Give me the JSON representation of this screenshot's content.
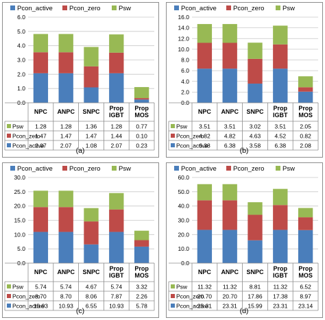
{
  "colors": {
    "pcon_active": "#4a7ebb",
    "pcon_zero": "#be4b48",
    "psw": "#98b954",
    "grid": "#c8c8c8",
    "border": "#8c8c8c",
    "text": "#000000"
  },
  "chart_data": [
    {
      "panel_label": "(a)",
      "type": "bar",
      "stacked": true,
      "categories": [
        "NPC",
        "ANPC",
        "SNPC",
        "Prop IGBT",
        "Prop MOS"
      ],
      "series": [
        {
          "name": "Pcon_active",
          "color_key": "pcon_active",
          "values": [
            2.07,
            2.07,
            1.08,
            2.07,
            0.23
          ],
          "labels": [
            "2.07",
            "2.07",
            "1.08",
            "2.07",
            "0.23"
          ]
        },
        {
          "name": "Pcon_zero",
          "color_key": "pcon_zero",
          "values": [
            1.47,
            1.47,
            1.47,
            1.44,
            0.1
          ],
          "labels": [
            "1.47",
            "1.47",
            "1.47",
            "1.44",
            "0.10"
          ]
        },
        {
          "name": "Psw",
          "color_key": "psw",
          "values": [
            1.28,
            1.28,
            1.36,
            1.28,
            0.77
          ],
          "labels": [
            "1.28",
            "1.28",
            "1.36",
            "1.28",
            "0.77"
          ]
        }
      ],
      "ylim": [
        0,
        6.0
      ],
      "yticks": [
        "0.0",
        "1.0",
        "2.0",
        "3.0",
        "4.0",
        "5.0",
        "6.0"
      ],
      "grid": true,
      "legend_position": "top",
      "xlabel": "",
      "ylabel": "",
      "title": ""
    },
    {
      "panel_label": "(b)",
      "type": "bar",
      "stacked": true,
      "categories": [
        "NPC",
        "ANPC",
        "SNPC",
        "Prop IGBT",
        "Prop MOS"
      ],
      "series": [
        {
          "name": "Pcon_active",
          "color_key": "pcon_active",
          "values": [
            6.38,
            6.38,
            3.58,
            6.38,
            2.08
          ],
          "labels": [
            "6.38",
            "6.38",
            "3.58",
            "6.38",
            "2.08"
          ]
        },
        {
          "name": "Pcon_zero",
          "color_key": "pcon_zero",
          "values": [
            4.82,
            4.82,
            4.63,
            4.52,
            0.82
          ],
          "labels": [
            "4.82",
            "4.82",
            "4.63",
            "4.52",
            "0.82"
          ]
        },
        {
          "name": "Psw",
          "color_key": "psw",
          "values": [
            3.51,
            3.51,
            3.02,
            3.51,
            2.05
          ],
          "labels": [
            "3.51",
            "3.51",
            "3.02",
            "3.51",
            "2.05"
          ]
        }
      ],
      "ylim": [
        0,
        16.0
      ],
      "yticks": [
        "0.0",
        "2.0",
        "4.0",
        "6.0",
        "8.0",
        "10.0",
        "12.0",
        "14.0",
        "16.0"
      ],
      "grid": true,
      "legend_position": "top",
      "xlabel": "",
      "ylabel": "",
      "title": ""
    },
    {
      "panel_label": "(c)",
      "type": "bar",
      "stacked": true,
      "categories": [
        "NPC",
        "ANPC",
        "SNPC",
        "Prop IGBT",
        "Prop MOS"
      ],
      "series": [
        {
          "name": "Pcon_active",
          "color_key": "pcon_active",
          "values": [
            10.93,
            10.93,
            6.55,
            10.93,
            5.78
          ],
          "labels": [
            "10.93",
            "10.93",
            "6.55",
            "10.93",
            "5.78"
          ]
        },
        {
          "name": "Pcon_zero",
          "color_key": "pcon_zero",
          "values": [
            8.7,
            8.7,
            8.06,
            7.87,
            2.26
          ],
          "labels": [
            "8.70",
            "8.70",
            "8.06",
            "7.87",
            "2.26"
          ]
        },
        {
          "name": "Psw",
          "color_key": "psw",
          "values": [
            5.74,
            5.74,
            4.67,
            5.74,
            3.32
          ],
          "labels": [
            "5.74",
            "5.74",
            "4.67",
            "5.74",
            "3.32"
          ]
        }
      ],
      "ylim": [
        0,
        30.0
      ],
      "yticks": [
        "0.0",
        "5.0",
        "10.0",
        "15.0",
        "20.0",
        "25.0",
        "30.0"
      ],
      "grid": true,
      "legend_position": "top",
      "xlabel": "",
      "ylabel": "",
      "title": ""
    },
    {
      "panel_label": "(d)",
      "type": "bar",
      "stacked": true,
      "categories": [
        "NPC",
        "ANPC",
        "SNPC",
        "Prop IGBT",
        "Prop MOS"
      ],
      "series": [
        {
          "name": "Pcon_active",
          "color_key": "pcon_active",
          "values": [
            23.31,
            23.31,
            15.99,
            23.31,
            23.14
          ],
          "labels": [
            "23.31",
            "23.31",
            "15.99",
            "23.31",
            "23.14"
          ]
        },
        {
          "name": "Pcon_zero",
          "color_key": "pcon_zero",
          "values": [
            20.7,
            20.7,
            17.86,
            17.38,
            8.97
          ],
          "labels": [
            "20.70",
            "20.70",
            "17.86",
            "17.38",
            "8.97"
          ]
        },
        {
          "name": "Psw",
          "color_key": "psw",
          "values": [
            11.32,
            11.32,
            8.81,
            11.32,
            6.52
          ],
          "labels": [
            "11.32",
            "11.32",
            "8.81",
            "11.32",
            "6.52"
          ]
        }
      ],
      "ylim": [
        0,
        60.0
      ],
      "yticks": [
        "0.0",
        "10.0",
        "20.0",
        "30.0",
        "40.0",
        "50.0",
        "60.0"
      ],
      "grid": true,
      "legend_position": "top",
      "xlabel": "",
      "ylabel": "",
      "title": ""
    }
  ]
}
